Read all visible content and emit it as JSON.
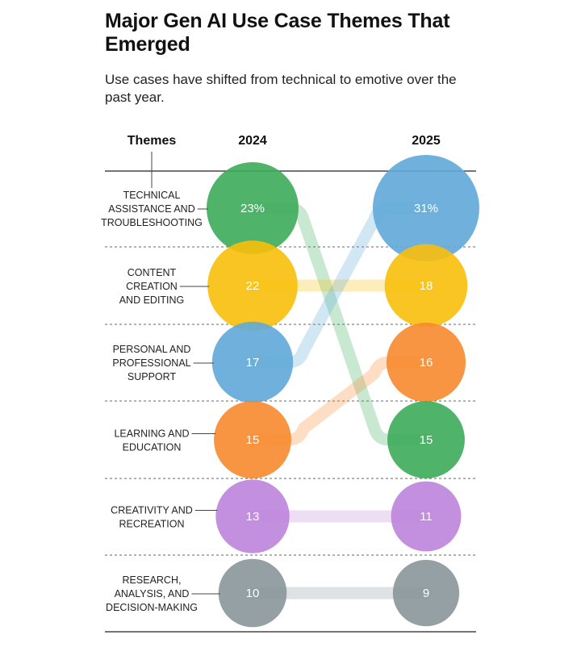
{
  "title": "Major Gen AI Use Case Themes That Emerged",
  "subtitle": "Use cases have shifted from technical to emotive over the past year.",
  "chart_data": {
    "type": "bump",
    "column_header": "Themes",
    "years": [
      "2024",
      "2025"
    ],
    "themes": [
      {
        "key": "technical",
        "lines": [
          "TECHNICAL",
          "ASSISTANCE AND",
          "TROUBLESHOOTING"
        ],
        "color": "#3dab5a",
        "v2024": 23,
        "l2024": "23%",
        "v2025": 15,
        "l2025": "15"
      },
      {
        "key": "content",
        "lines": [
          "CONTENT",
          "CREATION",
          "AND EDITING"
        ],
        "color": "#f8bf0b",
        "v2024": 22,
        "l2024": "22",
        "v2025": 18,
        "l2025": "18"
      },
      {
        "key": "personal",
        "lines": [
          "PERSONAL AND",
          "PROFESSIONAL",
          "SUPPORT"
        ],
        "color": "#5fa9d8",
        "v2024": 17,
        "l2024": "17",
        "v2025": 31,
        "l2025": "31%"
      },
      {
        "key": "learning",
        "lines": [
          "LEARNING AND",
          "EDUCATION"
        ],
        "color": "#f7892e",
        "v2024": 15,
        "l2024": "15",
        "v2025": 16,
        "l2025": "16"
      },
      {
        "key": "creativity",
        "lines": [
          "CREATIVITY AND",
          "RECREATION"
        ],
        "color": "#bd84dc",
        "v2024": 13,
        "l2024": "13",
        "v2025": 11,
        "l2025": "11"
      },
      {
        "key": "research",
        "lines": [
          "RESEARCH,",
          "ANALYSIS, AND",
          "DECISION-MAKING"
        ],
        "color": "#8a969a",
        "v2024": 10,
        "l2024": "10",
        "v2025": 9,
        "l2025": "9"
      }
    ]
  }
}
